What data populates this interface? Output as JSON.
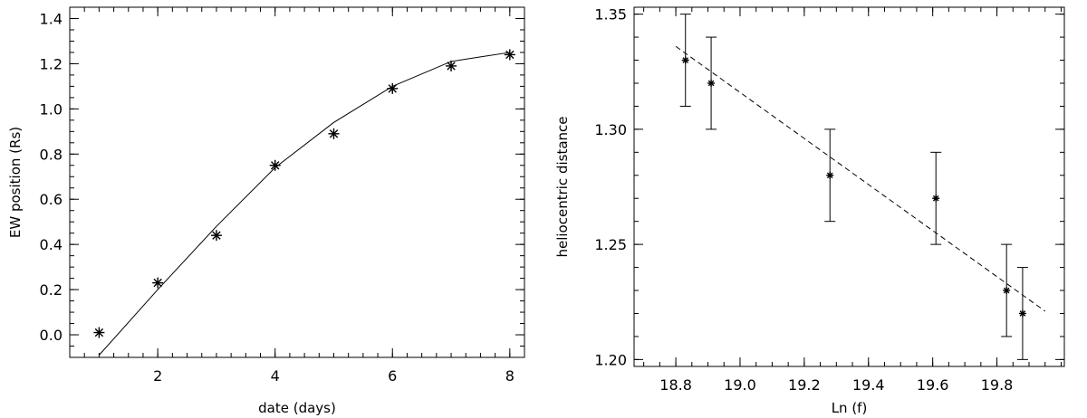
{
  "chart_data": [
    {
      "type": "scatter",
      "xlabel": "date  (days)",
      "ylabel": "EW position (Rs)",
      "xlim": [
        0.5,
        8.25
      ],
      "ylim": [
        -0.1,
        1.45
      ],
      "xticks": [
        "2",
        "4",
        "6",
        "8"
      ],
      "yticks": [
        "0.0",
        "0.2",
        "0.4",
        "0.6",
        "0.8",
        "1.0",
        "1.2",
        "1.4"
      ],
      "grid": false,
      "series": [
        {
          "marker": "asterisk",
          "x": [
            1,
            2,
            3,
            4,
            5,
            6,
            7,
            8
          ],
          "y": [
            0.01,
            0.23,
            0.44,
            0.75,
            0.89,
            1.09,
            1.19,
            1.24
          ]
        },
        {
          "line": "solid",
          "x": [
            1.0,
            2.0,
            3.0,
            4.0,
            5.0,
            6.0,
            7.0,
            7.5,
            8.0
          ],
          "y": [
            -0.09,
            0.2,
            0.48,
            0.74,
            0.94,
            1.1,
            1.21,
            1.23,
            1.25
          ]
        }
      ]
    },
    {
      "type": "scatter",
      "xlabel": "Ln (f)",
      "ylabel": "heliocentric distance",
      "xlim": [
        18.67,
        20.01
      ],
      "ylim": [
        1.197,
        1.353
      ],
      "xticks": [
        "18.8",
        "19.0",
        "19.2",
        "19.4",
        "19.6",
        "19.8"
      ],
      "yticks": [
        "1.20",
        "1.25",
        "1.30",
        "1.35"
      ],
      "grid": false,
      "series": [
        {
          "marker": "asterisk",
          "error_bars": true,
          "x": [
            18.83,
            18.91,
            19.28,
            19.61,
            19.83,
            19.88
          ],
          "y": [
            1.33,
            1.32,
            1.28,
            1.27,
            1.23,
            1.22
          ],
          "yerr": [
            0.02,
            0.02,
            0.02,
            0.02,
            0.02,
            0.02
          ]
        },
        {
          "line": "dashed",
          "x": [
            18.8,
            19.95
          ],
          "y": [
            1.336,
            1.221
          ]
        }
      ]
    }
  ]
}
